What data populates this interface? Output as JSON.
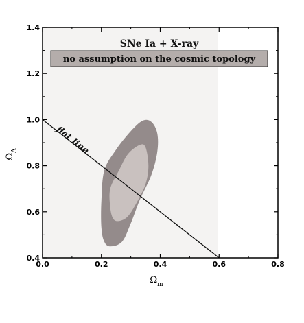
{
  "chart_data": {
    "type": "contour",
    "title": "SNe Ia + X-ray",
    "subtitle": "no assumption on the cosmic topology",
    "xlabel": "Ω",
    "xlabel_sub": "m",
    "ylabel": "Ω",
    "ylabel_sub": "Λ",
    "xlim": [
      0.0,
      0.8
    ],
    "ylim": [
      0.4,
      1.4
    ],
    "x_ticks": [
      "0.0",
      "0.2",
      "0.4",
      "0.6",
      "0.8"
    ],
    "y_ticks": [
      "0.4",
      "0.6",
      "0.8",
      "1.0",
      "1.2",
      "1.4"
    ],
    "grid": false,
    "shaded_region": {
      "x_range": [
        0.0,
        0.595
      ],
      "color": "#f4f3f2"
    },
    "contours": [
      {
        "level": "outer",
        "color": "#948b8b",
        "points": [
          [
            0.23,
            0.45
          ],
          [
            0.27,
            0.47
          ],
          [
            0.3,
            0.55
          ],
          [
            0.33,
            0.65
          ],
          [
            0.37,
            0.76
          ],
          [
            0.39,
            0.86
          ],
          [
            0.39,
            0.94
          ],
          [
            0.37,
            0.99
          ],
          [
            0.34,
            0.995
          ],
          [
            0.3,
            0.95
          ],
          [
            0.25,
            0.87
          ],
          [
            0.21,
            0.78
          ],
          [
            0.2,
            0.65
          ],
          [
            0.2,
            0.53
          ],
          [
            0.21,
            0.47
          ]
        ]
      },
      {
        "level": "inner",
        "color": "#c9c1bf",
        "points": [
          [
            0.26,
            0.56
          ],
          [
            0.29,
            0.58
          ],
          [
            0.32,
            0.64
          ],
          [
            0.35,
            0.72
          ],
          [
            0.36,
            0.8
          ],
          [
            0.35,
            0.88
          ],
          [
            0.33,
            0.89
          ],
          [
            0.29,
            0.85
          ],
          [
            0.26,
            0.78
          ],
          [
            0.23,
            0.7
          ],
          [
            0.23,
            0.62
          ],
          [
            0.24,
            0.57
          ]
        ]
      }
    ],
    "flat_line": {
      "label": "flat line",
      "x": [
        0.0,
        0.6
      ],
      "y": [
        1.0,
        0.4
      ]
    },
    "colors": {
      "title_box": "#b4adab",
      "box_border": "#333333"
    }
  }
}
